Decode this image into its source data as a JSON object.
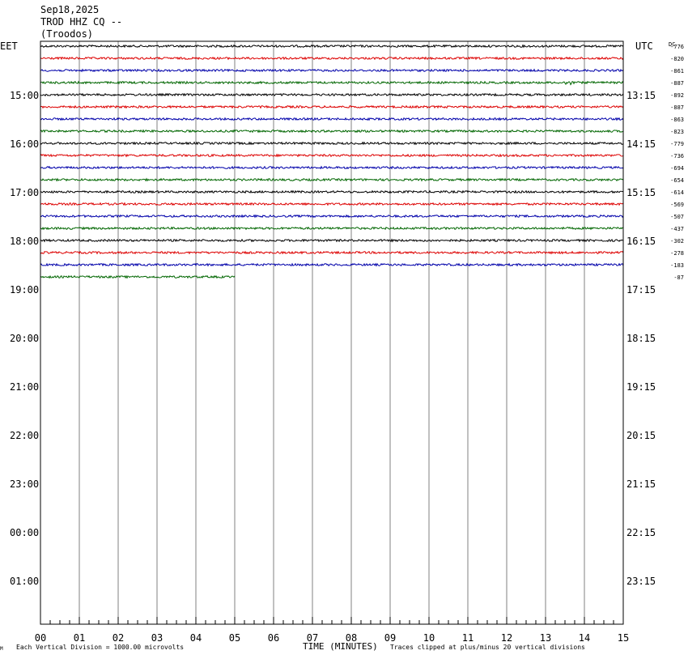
{
  "header": {
    "date": "Sep18,2025",
    "station": "TROD HHZ CQ --",
    "location": "(Troodos)"
  },
  "left_tz": "EET",
  "right_tz": "UTC",
  "dc_label": "DC",
  "left_hour_labels": [
    "15:00",
    "16:00",
    "17:00",
    "18:00",
    "19:00",
    "20:00",
    "21:00",
    "22:00",
    "23:00",
    "00:00",
    "01:00"
  ],
  "right_hour_labels": [
    "13:15",
    "14:15",
    "15:15",
    "16:15",
    "17:15",
    "18:15",
    "19:15",
    "20:15",
    "21:15",
    "22:15",
    "23:15"
  ],
  "footer": {
    "scale": "Each Vertical Division = 1000.00 microvolts",
    "axis_title": "TIME (MINUTES)",
    "clip_note": "Traces clipped at plus/minus 20 vertical divisions",
    "corner_mark": "M"
  },
  "colors": {
    "trace_cycle": [
      "#000000",
      "#dd0000",
      "#0000aa",
      "#006600"
    ],
    "grid": "#808080",
    "frame": "#000000"
  },
  "chart_data": {
    "type": "line",
    "xlabel": "TIME (MINUTES)",
    "xlim": [
      0,
      15
    ],
    "x_ticks": [
      "00",
      "01",
      "02",
      "03",
      "04",
      "05",
      "06",
      "07",
      "08",
      "09",
      "10",
      "11",
      "12",
      "13",
      "14",
      "15"
    ],
    "minor_ticks_per_minute": 4,
    "rows_per_hour": 4,
    "minutes_per_row": 15,
    "total_rows": 48,
    "series": [
      {
        "dc": "-776",
        "end_minute": 15
      },
      {
        "dc": "-820",
        "end_minute": 15
      },
      {
        "dc": "-861",
        "end_minute": 15
      },
      {
        "dc": "-887",
        "end_minute": 15,
        "spike_minute": 13.6
      },
      {
        "dc": "-892",
        "end_minute": 15
      },
      {
        "dc": "-887",
        "end_minute": 15
      },
      {
        "dc": "-863",
        "end_minute": 15
      },
      {
        "dc": "-823",
        "end_minute": 15
      },
      {
        "dc": "-779",
        "end_minute": 15
      },
      {
        "dc": "-736",
        "end_minute": 15
      },
      {
        "dc": "-694",
        "end_minute": 15
      },
      {
        "dc": "-654",
        "end_minute": 15
      },
      {
        "dc": "-614",
        "end_minute": 15
      },
      {
        "dc": "-569",
        "end_minute": 15
      },
      {
        "dc": "-507",
        "end_minute": 15
      },
      {
        "dc": "-437",
        "end_minute": 15
      },
      {
        "dc": "-302",
        "end_minute": 15
      },
      {
        "dc": "-278",
        "end_minute": 15
      },
      {
        "dc": "-183",
        "end_minute": 15
      },
      {
        "dc": "-87",
        "end_minute": 5
      }
    ]
  }
}
